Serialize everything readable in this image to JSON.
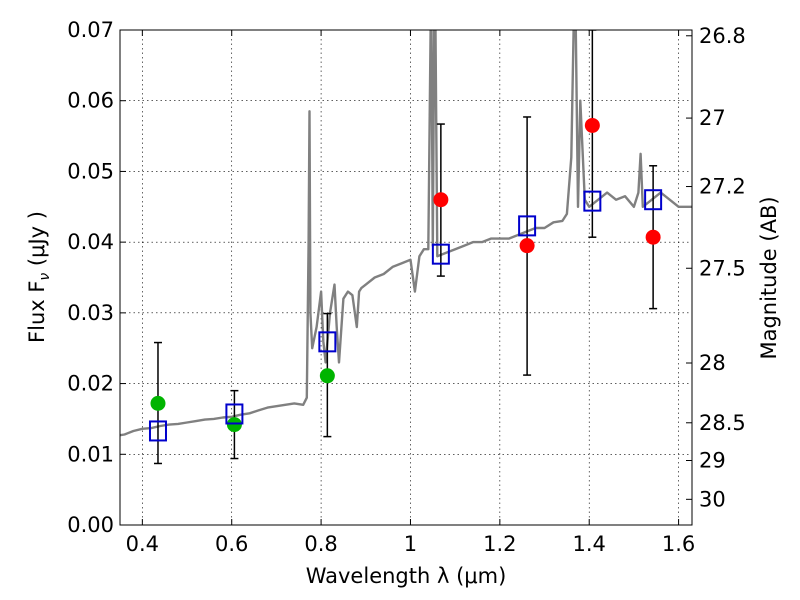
{
  "chart_data": {
    "type": "scatter",
    "xlabel": "Wavelength  λ (μm)",
    "ylabel": "Flux  F",
    "ylabel_sub": "ν",
    "ylabel_unit": "  (μJy )",
    "y2label": "Magnitude (AB)",
    "xlim": [
      0.35,
      1.63
    ],
    "ylim": [
      0.0,
      0.07
    ],
    "grid": true,
    "x_ticks": [
      {
        "v": 0.4,
        "label": "0.4"
      },
      {
        "v": 0.6,
        "label": "0.6"
      },
      {
        "v": 0.8,
        "label": "0.8"
      },
      {
        "v": 1.0,
        "label": "1"
      },
      {
        "v": 1.2,
        "label": "1.2"
      },
      {
        "v": 1.4,
        "label": "1.4"
      },
      {
        "v": 1.6,
        "label": "1.6"
      }
    ],
    "y_ticks": [
      {
        "v": 0.0,
        "label": "0.00"
      },
      {
        "v": 0.01,
        "label": "0.01"
      },
      {
        "v": 0.02,
        "label": "0.02"
      },
      {
        "v": 0.03,
        "label": "0.03"
      },
      {
        "v": 0.04,
        "label": "0.04"
      },
      {
        "v": 0.05,
        "label": "0.05"
      },
      {
        "v": 0.06,
        "label": "0.06"
      },
      {
        "v": 0.07,
        "label": "0.07"
      }
    ],
    "mag_ticks": [
      {
        "mag": 26.8,
        "label": "26.8"
      },
      {
        "mag": 27.0,
        "label": "27"
      },
      {
        "mag": 27.2,
        "label": "27.2"
      },
      {
        "mag": 27.5,
        "label": "27.5"
      },
      {
        "mag": 28.0,
        "label": "28"
      },
      {
        "mag": 28.5,
        "label": "28.5"
      },
      {
        "mag": 29.0,
        "label": "29"
      },
      {
        "mag": 30.0,
        "label": "30"
      }
    ],
    "model_spectrum": {
      "color": "#808080",
      "x": [
        0.35,
        0.36,
        0.38,
        0.4,
        0.42,
        0.44,
        0.46,
        0.48,
        0.5,
        0.52,
        0.54,
        0.56,
        0.58,
        0.6,
        0.62,
        0.64,
        0.66,
        0.68,
        0.7,
        0.72,
        0.74,
        0.76,
        0.768,
        0.772,
        0.774,
        0.776,
        0.78,
        0.79,
        0.8,
        0.805,
        0.81,
        0.82,
        0.83,
        0.835,
        0.84,
        0.85,
        0.86,
        0.87,
        0.88,
        0.885,
        0.89,
        0.9,
        0.92,
        0.94,
        0.96,
        0.98,
        1.0,
        1.01,
        1.02,
        1.03,
        1.04,
        1.045,
        1.047,
        1.05,
        1.053,
        1.056,
        1.06,
        1.08,
        1.1,
        1.12,
        1.14,
        1.16,
        1.18,
        1.2,
        1.22,
        1.24,
        1.26,
        1.28,
        1.3,
        1.32,
        1.34,
        1.35,
        1.36,
        1.365,
        1.37,
        1.375,
        1.38,
        1.39,
        1.4,
        1.42,
        1.44,
        1.46,
        1.48,
        1.5,
        1.51,
        1.515,
        1.52,
        1.54,
        1.56,
        1.58,
        1.6,
        1.63
      ],
      "y": [
        0.0127,
        0.0128,
        0.0133,
        0.0136,
        0.0137,
        0.014,
        0.0142,
        0.0143,
        0.0145,
        0.0147,
        0.0149,
        0.015,
        0.0152,
        0.0153,
        0.0156,
        0.0158,
        0.0162,
        0.0166,
        0.0168,
        0.017,
        0.0172,
        0.017,
        0.018,
        0.04,
        0.0585,
        0.03,
        0.025,
        0.028,
        0.033,
        0.026,
        0.023,
        0.03,
        0.034,
        0.028,
        0.023,
        0.032,
        0.033,
        0.0325,
        0.028,
        0.033,
        0.0335,
        0.034,
        0.035,
        0.0355,
        0.0365,
        0.037,
        0.0375,
        0.033,
        0.038,
        0.039,
        0.039,
        0.07,
        0.07,
        0.0395,
        0.07,
        0.07,
        0.038,
        0.0385,
        0.039,
        0.0395,
        0.04,
        0.04,
        0.0405,
        0.0405,
        0.0405,
        0.041,
        0.0415,
        0.042,
        0.042,
        0.0428,
        0.043,
        0.044,
        0.052,
        0.07,
        0.07,
        0.045,
        0.06,
        0.046,
        0.045,
        0.046,
        0.047,
        0.046,
        0.0465,
        0.045,
        0.047,
        0.0525,
        0.045,
        0.046,
        0.047,
        0.046,
        0.045,
        0.045
      ]
    },
    "series": [
      {
        "marker": "circle",
        "color": "#00b400",
        "points": [
          {
            "x": 0.435,
            "y": 0.0172
          },
          {
            "x": 0.606,
            "y": 0.0142
          },
          {
            "x": 0.814,
            "y": 0.0211
          }
        ]
      },
      {
        "marker": "circle",
        "color": "#ff0000",
        "points": [
          {
            "x": 1.068,
            "y": 0.046
          },
          {
            "x": 1.261,
            "y": 0.0395
          },
          {
            "x": 1.407,
            "y": 0.0565
          },
          {
            "x": 1.543,
            "y": 0.0407
          }
        ]
      },
      {
        "marker": "open-square",
        "color": "#0000cc",
        "points": [
          {
            "x": 0.435,
            "y": 0.0133
          },
          {
            "x": 0.606,
            "y": 0.0157
          },
          {
            "x": 0.814,
            "y": 0.0259
          },
          {
            "x": 1.068,
            "y": 0.0383
          },
          {
            "x": 1.261,
            "y": 0.0423
          },
          {
            "x": 1.407,
            "y": 0.0458
          },
          {
            "x": 1.543,
            "y": 0.046
          }
        ]
      }
    ],
    "error_bars": [
      {
        "x": 0.435,
        "low": 0.0087,
        "high": 0.0258
      },
      {
        "x": 0.606,
        "low": 0.0094,
        "high": 0.019
      },
      {
        "x": 0.814,
        "low": 0.0125,
        "high": 0.0299
      },
      {
        "x": 1.068,
        "low": 0.0352,
        "high": 0.0567
      },
      {
        "x": 1.261,
        "low": 0.0212,
        "high": 0.0577
      },
      {
        "x": 1.407,
        "low": 0.0407,
        "high": 0.07
      },
      {
        "x": 1.543,
        "low": 0.0306,
        "high": 0.0508
      }
    ]
  }
}
